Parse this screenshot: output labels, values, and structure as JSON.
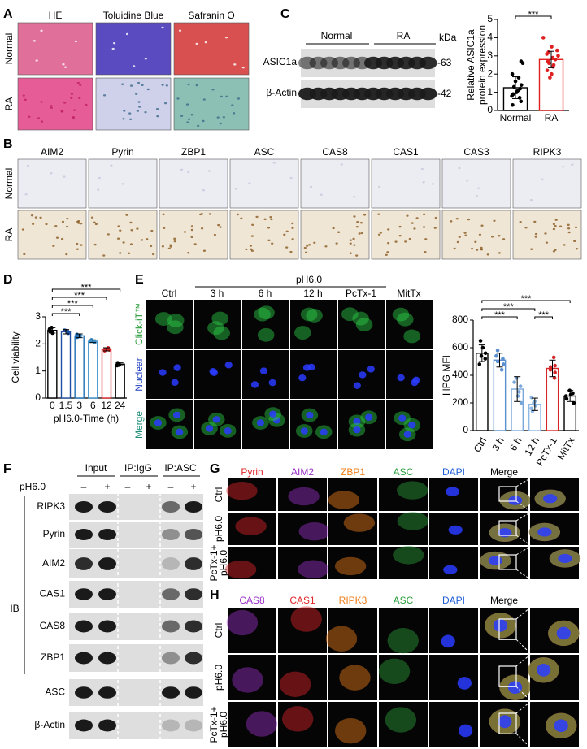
{
  "figure": {
    "A": {
      "label": "A",
      "columns": [
        "HE",
        "Toluidine Blue",
        "Safranin O"
      ],
      "rows": [
        "Normal",
        "RA"
      ]
    },
    "B": {
      "label": "B",
      "columns": [
        "AIM2",
        "Pyrin",
        "ZBP1",
        "ASC",
        "CAS8",
        "CAS1",
        "CAS3",
        "RIPK3"
      ],
      "rows": [
        "Normal",
        "RA"
      ]
    },
    "C": {
      "label": "C",
      "groups": [
        "Normal",
        "RA"
      ],
      "unit": "kDa",
      "bands": [
        {
          "name": "ASIC1a",
          "size": "-63"
        },
        {
          "name": "β-Actin",
          "size": "-42"
        }
      ]
    },
    "D": {
      "label": "D"
    },
    "E": {
      "label": "E",
      "treatment": "pH6.0",
      "columns": [
        "Ctrl",
        "3 h",
        "6 h",
        "12 h",
        "PcTx-1",
        "MitTx"
      ],
      "rows": [
        {
          "text": "Click-iT™",
          "color": "#2a9d3a"
        },
        {
          "text": "Nuclear",
          "color": "#1f3fbf"
        },
        {
          "text": "Merge",
          "color": "#1f8f7a"
        }
      ]
    },
    "F": {
      "label": "F",
      "groups": [
        "Input",
        "IP:IgG",
        "IP:ASC"
      ],
      "treatment": "pH6.0",
      "signs": [
        "–",
        "+",
        "–",
        "+",
        "–",
        "+"
      ],
      "blots": [
        "RIPK3",
        "Pyrin",
        "AIM2",
        "CAS1",
        "CAS8",
        "ZBP1",
        "ASC",
        "β-Actin"
      ],
      "ib": "IB"
    },
    "G": {
      "label": "G",
      "columns": [
        {
          "text": "Pyrin",
          "color": "#e0262a"
        },
        {
          "text": "AIM2",
          "color": "#9b30c8"
        },
        {
          "text": "ZBP1",
          "color": "#f07f1a"
        },
        {
          "text": "ASC",
          "color": "#2ca03c"
        },
        {
          "text": "DAPI",
          "color": "#1f5fd6"
        },
        {
          "text": "Merge",
          "color": "#000000"
        }
      ],
      "rows": [
        [
          "Ctrl"
        ],
        [
          "pH6.0"
        ],
        [
          "PcTx-1+",
          "pH6.0"
        ]
      ]
    },
    "H": {
      "label": "H",
      "columns": [
        {
          "text": "CAS8",
          "color": "#9b30c8"
        },
        {
          "text": "CAS1",
          "color": "#e0262a"
        },
        {
          "text": "RIPK3",
          "color": "#f07f1a"
        },
        {
          "text": "ASC",
          "color": "#2ca03c"
        },
        {
          "text": "DAPI",
          "color": "#1f5fd6"
        },
        {
          "text": "Merge",
          "color": "#000000"
        }
      ],
      "rows": [
        [
          "Ctrl"
        ],
        [
          "pH6.0"
        ],
        [
          "PcTx-1+",
          "pH6.0"
        ]
      ]
    }
  },
  "chart_data": [
    {
      "type": "bar",
      "ylabel": [
        "Relative ASIC1a",
        "protein expression"
      ],
      "categories": [
        "Normal",
        "RA"
      ],
      "values": [
        1.25,
        2.8
      ],
      "errors": [
        0.6,
        0.45
      ],
      "points": [
        [
          0.3,
          0.5,
          0.7,
          0.8,
          0.9,
          1.0,
          1.1,
          1.2,
          1.3,
          1.4,
          1.6,
          1.8,
          2.0,
          2.6,
          2.7
        ],
        [
          1.8,
          2.0,
          2.2,
          2.4,
          2.5,
          2.6,
          2.7,
          2.8,
          2.9,
          3.0,
          3.1,
          3.2,
          3.3,
          3.5,
          4.0
        ]
      ],
      "colors": [
        "#000000",
        "#e02020"
      ],
      "ylim": [
        0,
        5
      ],
      "yticks": [
        0,
        1,
        2,
        3,
        4,
        5
      ],
      "significance": [
        {
          "from": "Normal",
          "to": "RA",
          "label": "***"
        }
      ]
    },
    {
      "type": "bar",
      "ylabel": [
        "Cell viability"
      ],
      "xlabel": "pH6.0-Time (h)",
      "categories": [
        "0",
        "1.5",
        "3",
        "6",
        "12",
        "24"
      ],
      "values": [
        2.5,
        2.45,
        2.3,
        2.1,
        1.8,
        1.25
      ],
      "errors": [
        0.1,
        0.08,
        0.07,
        0.05,
        0.06,
        0.05
      ],
      "points": [
        [
          2.4,
          2.5,
          2.55,
          2.6,
          2.45
        ],
        [
          2.4,
          2.45,
          2.5,
          2.4,
          2.5
        ],
        [
          2.25,
          2.3,
          2.35,
          2.3,
          2.25
        ],
        [
          2.05,
          2.1,
          2.15,
          2.1,
          2.1
        ],
        [
          1.75,
          1.8,
          1.85,
          1.8,
          1.78
        ],
        [
          1.2,
          1.25,
          1.3,
          1.25,
          1.22
        ]
      ],
      "colors": [
        "#000000",
        "#1f4fa0",
        "#1f6fb4",
        "#3a8fc8",
        "#d62728",
        "#000000"
      ],
      "ylim": [
        0,
        3
      ],
      "yticks": [
        0,
        1,
        2,
        3
      ],
      "significance": [
        {
          "from": "0",
          "to": "3",
          "label": "***"
        },
        {
          "from": "0",
          "to": "6",
          "label": "***"
        },
        {
          "from": "0",
          "to": "12",
          "label": "***"
        },
        {
          "from": "0",
          "to": "24",
          "label": "***"
        }
      ]
    },
    {
      "type": "bar",
      "ylabel": [
        "HPG MFI"
      ],
      "categories": [
        "Ctrl",
        "3 h",
        "6 h",
        "12 h",
        "PcTx-1",
        "MitTx"
      ],
      "values": [
        560,
        510,
        300,
        190,
        450,
        250
      ],
      "errors": [
        60,
        50,
        90,
        45,
        60,
        40
      ],
      "points": [
        [
          480,
          520,
          560,
          600,
          650,
          540
        ],
        [
          440,
          480,
          500,
          540,
          580,
          520
        ],
        [
          200,
          250,
          280,
          320,
          380,
          350
        ],
        [
          140,
          160,
          180,
          200,
          240,
          210
        ],
        [
          380,
          420,
          440,
          470,
          530,
          460
        ],
        [
          200,
          230,
          250,
          260,
          290,
          270
        ]
      ],
      "colors": [
        "#000000",
        "#5a8fd0",
        "#7aa8dc",
        "#8fb8e4",
        "#d62728",
        "#000000"
      ],
      "ylim": [
        0,
        800
      ],
      "yticks": [
        0,
        200,
        400,
        600,
        800
      ],
      "significance": [
        {
          "from": "Ctrl",
          "to": "6 h",
          "label": "***"
        },
        {
          "from": "Ctrl",
          "to": "12 h",
          "label": "***"
        },
        {
          "from": "12 h",
          "to": "PcTx-1",
          "label": "***"
        },
        {
          "from": "Ctrl",
          "to": "MitTx",
          "label": "***"
        }
      ]
    }
  ]
}
